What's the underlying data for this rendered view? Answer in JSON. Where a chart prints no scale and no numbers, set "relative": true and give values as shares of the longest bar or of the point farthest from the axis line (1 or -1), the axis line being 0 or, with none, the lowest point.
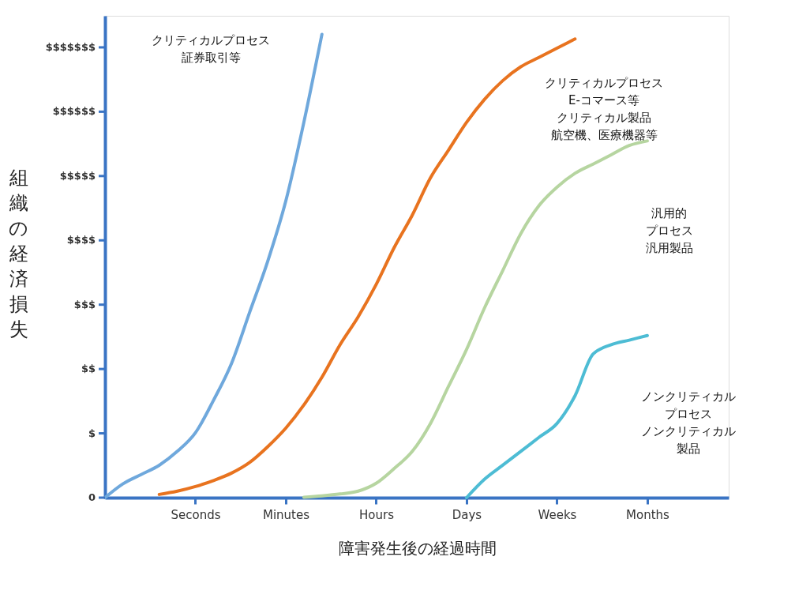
{
  "chart_data": {
    "type": "line",
    "xlabel": "障害発生後の経過時間",
    "ylabel": "組織の経済損失",
    "relative": true,
    "categories": [
      null,
      null,
      null,
      null,
      null,
      "Seconds",
      null,
      null,
      null,
      null,
      "Minutes",
      null,
      null,
      null,
      null,
      "Hours",
      null,
      null,
      null,
      null,
      "Days",
      null,
      null,
      null,
      null,
      "Weeks",
      null,
      null,
      null,
      null,
      "Months",
      null,
      null,
      null,
      null
    ],
    "grid": false,
    "legend": false,
    "marker": "none",
    "line_style": "solid",
    "series": [
      {
        "color": "#6fa8dc",
        "values": [
          0,
          0.03,
          0.05,
          0.07,
          0.1,
          0.14,
          0.21,
          0.29,
          0.4,
          0.51,
          0.64,
          0.81,
          1,
          null,
          null,
          null,
          null,
          null,
          null,
          null,
          null,
          null,
          null,
          null,
          null,
          null,
          null,
          null,
          null,
          null,
          null,
          null,
          null,
          null,
          null
        ]
      },
      {
        "color": "#e8731f",
        "values": [
          null,
          null,
          null,
          0.007,
          0.014,
          0.024,
          0.037,
          0.053,
          0.076,
          0.11,
          0.15,
          0.2,
          0.26,
          0.33,
          0.39,
          0.46,
          0.54,
          0.61,
          0.69,
          0.75,
          0.81,
          0.86,
          0.9,
          0.93,
          0.95,
          0.97,
          0.99,
          null,
          null,
          null,
          null,
          null,
          null,
          null,
          null
        ]
      },
      {
        "color": "#b6d5a0",
        "values": [
          null,
          null,
          null,
          null,
          null,
          null,
          null,
          null,
          null,
          null,
          null,
          0.001,
          0.004,
          0.008,
          0.014,
          0.031,
          0.063,
          0.1,
          0.16,
          0.24,
          0.32,
          0.41,
          0.49,
          0.57,
          0.63,
          0.67,
          0.7,
          0.72,
          0.74,
          0.76,
          0.77,
          null,
          null,
          null,
          null
        ]
      },
      {
        "color": "#4dbcd4",
        "values": [
          null,
          null,
          null,
          null,
          null,
          null,
          null,
          null,
          null,
          null,
          null,
          null,
          null,
          null,
          null,
          null,
          null,
          null,
          null,
          null,
          0,
          0.04,
          0.07,
          0.1,
          0.13,
          0.16,
          0.22,
          0.31,
          0.33,
          0.34,
          0.35,
          null,
          null,
          null,
          null
        ]
      }
    ],
    "annotations": [
      "クリティカルプロセス証券取引等",
      "クリティカルプロセスE-コマース等クリティカル製品航空機、医療機器等",
      "汎用的プロセス汎用製品",
      "ノンクリティカルプロセスノンクリティカル製品",
      "0",
      "$",
      "$$",
      "$$$",
      "$$$$",
      "$$$$$",
      "$$$$$$",
      "$$$$$$$"
    ]
  }
}
